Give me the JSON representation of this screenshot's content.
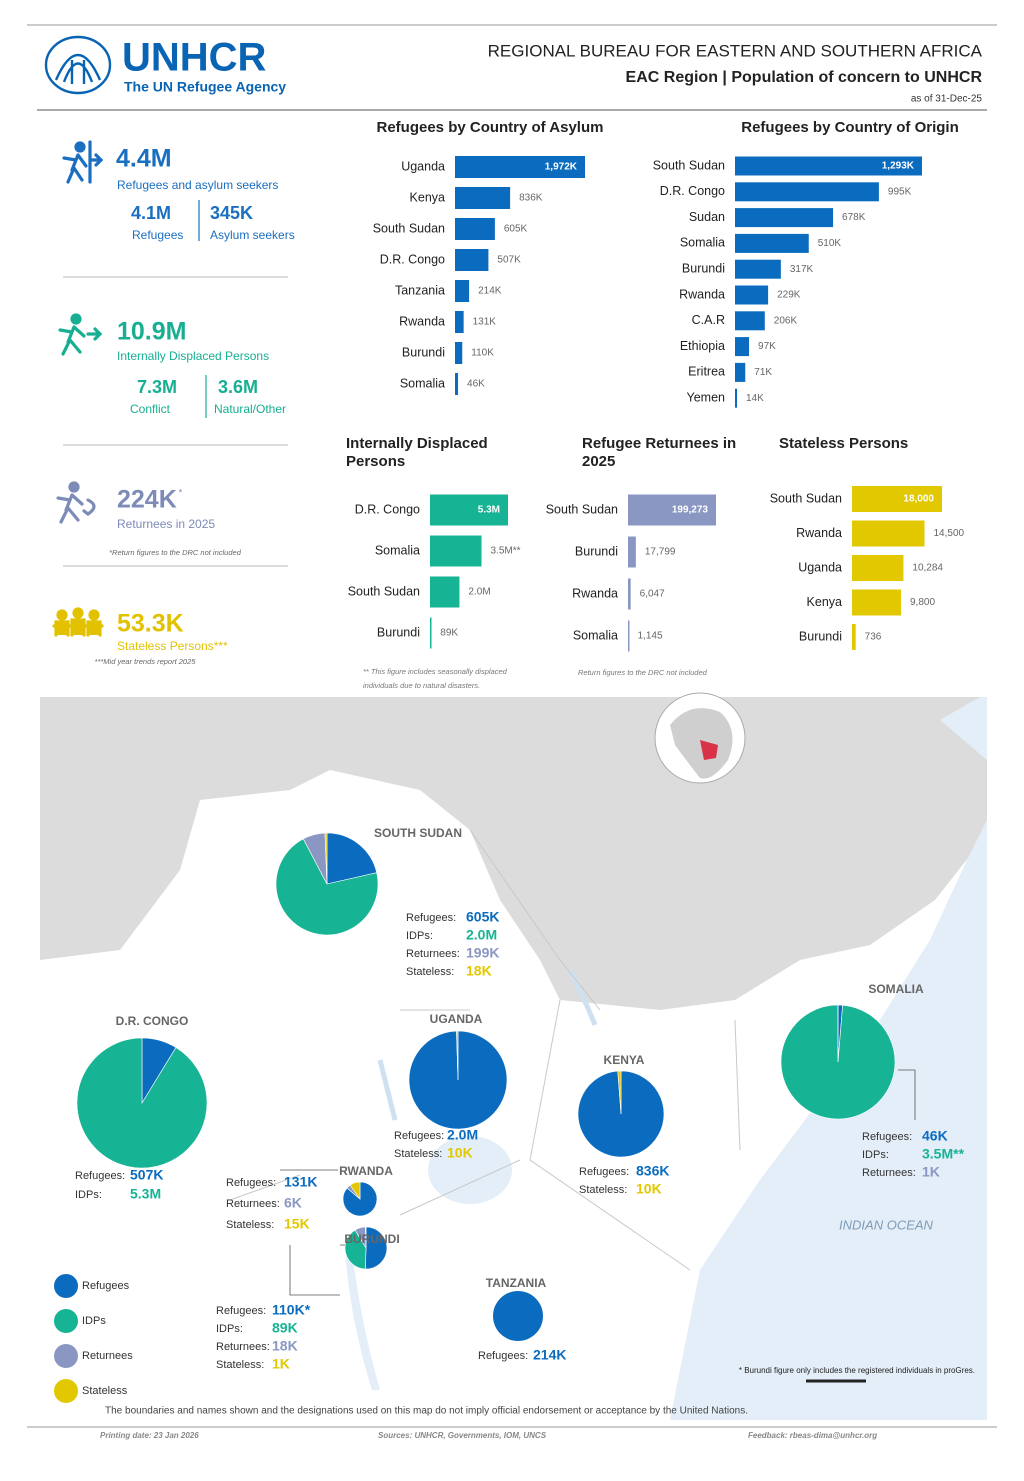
{
  "header": {
    "logo_name": "UNHCR",
    "logo_tagline": "The UN Refugee Agency",
    "bureau": "REGIONAL BUREAU FOR EASTERN AND SOUTHERN AFRICA",
    "title": "EAC Region | Population of concern to UNHCR",
    "date": "as of 31-Dec-25"
  },
  "kpis": [
    {
      "value": "4.4M",
      "label": "Refugees and asylum seekers",
      "color": "#1a6fc0",
      "parts": [
        {
          "value": "4.1M",
          "label": "Refugees"
        },
        {
          "value": "345K",
          "label": "Asylum seekers"
        }
      ]
    },
    {
      "value": "10.9M",
      "label": "Internally Displaced Persons",
      "color": "#17ae92",
      "parts": [
        {
          "value": "7.3M",
          "label": "Conflict"
        },
        {
          "value": "3.6M",
          "label": "Natural/Other"
        }
      ]
    },
    {
      "value": "224K",
      "mark": "*",
      "label": "Returnees in 2025",
      "note": "*Return figures to the DRC not included",
      "color": "#7d8bb8"
    },
    {
      "value": "53.3K",
      "label": "Stateless Persons***",
      "note": "***Mid year trends report 2025",
      "color": "#e2c200"
    }
  ],
  "chart_data": [
    {
      "type": "bar",
      "title": "Refugees by Country of Asylum",
      "categories": [
        "Uganda",
        "Kenya",
        "South Sudan",
        "D.R. Congo",
        "Tanzania",
        "Rwanda",
        "Burundi",
        "Somalia"
      ],
      "values": [
        1972000,
        836000,
        605000,
        507000,
        214000,
        131000,
        110000,
        46000
      ],
      "value_labels": [
        "1,972K",
        "836K",
        "605K",
        "507K",
        "214K",
        "131K",
        "110K",
        "46K"
      ],
      "color": "#0b6cbf"
    },
    {
      "type": "bar",
      "title": "Refugees by Country of Origin",
      "categories": [
        "South Sudan",
        "D.R. Congo",
        "Sudan",
        "Somalia",
        "Burundi",
        "Rwanda",
        "C.A.R",
        "Ethiopia",
        "Eritrea",
        "Yemen"
      ],
      "values": [
        1293000,
        995000,
        678000,
        510000,
        317000,
        229000,
        206000,
        97000,
        71000,
        14000
      ],
      "value_labels": [
        "1,293K",
        "995K",
        "678K",
        "510K",
        "317K",
        "229K",
        "206K",
        "97K",
        "71K",
        "14K"
      ],
      "color": "#0b6cbf"
    },
    {
      "type": "bar",
      "title": "Internally Displaced Persons",
      "categories": [
        "D.R. Congo",
        "Somalia",
        "South Sudan",
        "Burundi"
      ],
      "values": [
        5300000,
        3500000,
        2000000,
        89000
      ],
      "value_labels": [
        "5.3M",
        "3.5M**",
        "2.0M",
        "89K"
      ],
      "color": "#16b394",
      "note": "** This figure includes seasonally displaced individuals due to natural disasters."
    },
    {
      "type": "bar",
      "title": "Refugee Returnees in 2025",
      "categories": [
        "South Sudan",
        "Burundi",
        "Rwanda",
        "Somalia"
      ],
      "values": [
        199273,
        17799,
        6047,
        1145
      ],
      "value_labels": [
        "199,273",
        "17,799",
        "6,047",
        "1,145"
      ],
      "color": "#8a97c2",
      "note": "Return figures to the DRC not included"
    },
    {
      "type": "bar",
      "title": "Stateless Persons",
      "categories": [
        "South Sudan",
        "Rwanda",
        "Uganda",
        "Kenya",
        "Burundi"
      ],
      "values": [
        18000,
        14500,
        10284,
        9800,
        736
      ],
      "value_labels": [
        "18,000",
        "14,500",
        "10,284",
        "9,800",
        "736"
      ],
      "color": "#e2c800"
    }
  ],
  "map": {
    "countries": [
      {
        "name": "SOUTH SUDAN",
        "rows": [
          {
            "label": "Refugees:",
            "value": 605000,
            "value_label": "605K",
            "color": "#0b6cbf"
          },
          {
            "label": "IDPs:",
            "value": 2000000,
            "value_label": "2.0M",
            "color": "#16b394"
          },
          {
            "label": "Returnees:",
            "value": 199000,
            "value_label": "199K",
            "color": "#8a97c2"
          },
          {
            "label": "Stateless:",
            "value": 18000,
            "value_label": "18K",
            "color": "#e2c800"
          }
        ]
      },
      {
        "name": "D.R. CONGO",
        "rows": [
          {
            "label": "Refugees:",
            "value": 507000,
            "value_label": "507K",
            "color": "#0b6cbf"
          },
          {
            "label": "IDPs:",
            "value": 5300000,
            "value_label": "5.3M",
            "color": "#16b394"
          }
        ]
      },
      {
        "name": "UGANDA",
        "rows": [
          {
            "label": "Refugees:",
            "value": 2000000,
            "value_label": "2.0M",
            "color": "#0b6cbf"
          },
          {
            "label": "Stateless:",
            "value": 10000,
            "value_label": "10K",
            "color": "#e2c800"
          }
        ]
      },
      {
        "name": "KENYA",
        "rows": [
          {
            "label": "Refugees:",
            "value": 836000,
            "value_label": "836K",
            "color": "#0b6cbf"
          },
          {
            "label": "Stateless:",
            "value": 10000,
            "value_label": "10K",
            "color": "#e2c800"
          }
        ]
      },
      {
        "name": "SOMALIA",
        "rows": [
          {
            "label": "Refugees:",
            "value": 46000,
            "value_label": "46K",
            "color": "#0b6cbf"
          },
          {
            "label": "IDPs:",
            "value": 3500000,
            "value_label": "3.5M**",
            "color": "#16b394"
          },
          {
            "label": "Returnees:",
            "value": 1000,
            "value_label": "1K",
            "color": "#8a97c2"
          }
        ]
      },
      {
        "name": "RWANDA",
        "rows": [
          {
            "label": "Refugees:",
            "value": 131000,
            "value_label": "131K",
            "color": "#0b6cbf"
          },
          {
            "label": "Returnees:",
            "value": 6000,
            "value_label": "6K",
            "color": "#8a97c2"
          },
          {
            "label": "Stateless:",
            "value": 15000,
            "value_label": "15K",
            "color": "#e2c800"
          }
        ]
      },
      {
        "name": "BURUNDI",
        "rows": [
          {
            "label": "Refugees:",
            "value": 110000,
            "value_label": "110K*",
            "color": "#0b6cbf"
          },
          {
            "label": "IDPs:",
            "value": 89000,
            "value_label": "89K",
            "color": "#16b394"
          },
          {
            "label": "Returnees:",
            "value": 18000,
            "value_label": "18K",
            "color": "#8a97c2"
          },
          {
            "label": "Stateless:",
            "value": 1000,
            "value_label": "1K",
            "color": "#e2c800"
          }
        ]
      },
      {
        "name": "TANZANIA",
        "rows": [
          {
            "label": "Refugees:",
            "value": 214000,
            "value_label": "214K",
            "color": "#0b6cbf"
          }
        ]
      }
    ],
    "legend": [
      {
        "name": "Refugees",
        "color": "#0b6cbf"
      },
      {
        "name": "IDPs",
        "color": "#16b394"
      },
      {
        "name": "Returnees",
        "color": "#8a97c2"
      },
      {
        "name": "Stateless",
        "color": "#e2c800"
      }
    ],
    "ocean": "INDIAN OCEAN",
    "footnote": "* Burundi figure only includes the registered individuals in proGres.",
    "disclaimer": "The boundaries and names shown and the designations used on this map do not imply official endorsement or acceptance by the United Nations."
  },
  "footer": {
    "printing": "Printing date: 23 Jan 2026",
    "sources": "Sources: UNHCR, Governments, IOM, UNCS",
    "feedback": "Feedback: rbeas-dima@unhcr.org"
  }
}
